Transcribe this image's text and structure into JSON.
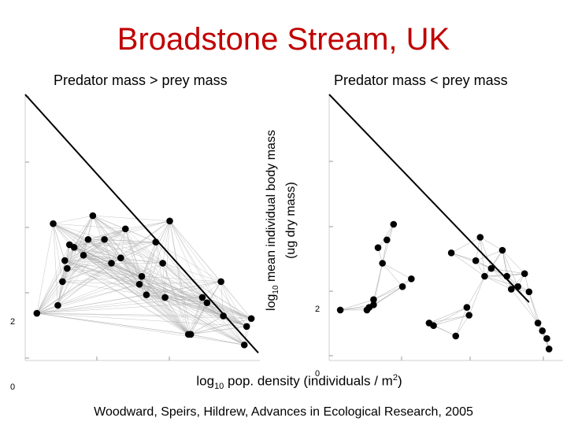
{
  "title": "Broadstone Stream, UK",
  "subtitles": {
    "left": "Predator mass > prey mass",
    "right": "Predator mass < prey mass"
  },
  "axis_labels": {
    "y_line1_pre": "log",
    "y_line1_sub": "10",
    "y_line1_post": " mean individual body mass",
    "y_line2": "(ug dry mass)",
    "x_pre": "log",
    "x_sub": "10",
    "x_post": " pop. density (individuals / m",
    "x_sup": "2",
    "x_end": ")"
  },
  "tick_labels": {
    "left_y_2": "2",
    "left_y_0": "0",
    "right_y_2": "2",
    "right_y_0": "0"
  },
  "credit": "Woodward, Speirs, Hildrew, Advances in Ecological Research, 2005",
  "colors": {
    "title": "#c00000",
    "points": "#000000",
    "links": "#aaaaaa",
    "line": "#000000"
  },
  "chart_data": [
    {
      "type": "scatter",
      "name": "left-panel",
      "x_units": "panel-relative",
      "points": [
        [
          0.05,
          0.17
        ],
        [
          0.14,
          0.2
        ],
        [
          0.12,
          0.51
        ],
        [
          0.16,
          0.29
        ],
        [
          0.17,
          0.37
        ],
        [
          0.18,
          0.34
        ],
        [
          0.19,
          0.43
        ],
        [
          0.21,
          0.42
        ],
        [
          0.25,
          0.39
        ],
        [
          0.27,
          0.45
        ],
        [
          0.29,
          0.54
        ],
        [
          0.34,
          0.45
        ],
        [
          0.41,
          0.38
        ],
        [
          0.43,
          0.49
        ],
        [
          0.49,
          0.28
        ],
        [
          0.5,
          0.31
        ],
        [
          0.52,
          0.24
        ],
        [
          0.56,
          0.44
        ],
        [
          0.59,
          0.36
        ],
        [
          0.6,
          0.23
        ],
        [
          0.62,
          0.52
        ],
        [
          0.7,
          0.09
        ],
        [
          0.71,
          0.09
        ],
        [
          0.76,
          0.23
        ],
        [
          0.78,
          0.21
        ],
        [
          0.84,
          0.29
        ],
        [
          0.85,
          0.16
        ],
        [
          0.94,
          0.05
        ],
        [
          0.95,
          0.12
        ],
        [
          0.97,
          0.15
        ],
        [
          0.37,
          0.36
        ]
      ],
      "line": [
        [
          0.0,
          1.0
        ],
        [
          1.0,
          0.02
        ]
      ]
    },
    {
      "type": "scatter",
      "name": "right-panel",
      "x_units": "panel-relative",
      "points": [
        [
          0.05,
          0.17
        ],
        [
          0.17,
          0.17
        ],
        [
          0.18,
          0.18
        ],
        [
          0.2,
          0.19
        ],
        [
          0.2,
          0.21
        ],
        [
          0.22,
          0.41
        ],
        [
          0.24,
          0.35
        ],
        [
          0.26,
          0.44
        ],
        [
          0.29,
          0.5
        ],
        [
          0.33,
          0.26
        ],
        [
          0.37,
          0.29
        ],
        [
          0.45,
          0.12
        ],
        [
          0.47,
          0.11
        ],
        [
          0.55,
          0.39
        ],
        [
          0.57,
          0.07
        ],
        [
          0.62,
          0.18
        ],
        [
          0.63,
          0.15
        ],
        [
          0.66,
          0.36
        ],
        [
          0.68,
          0.45
        ],
        [
          0.7,
          0.3
        ],
        [
          0.73,
          0.33
        ],
        [
          0.78,
          0.4
        ],
        [
          0.8,
          0.3
        ],
        [
          0.82,
          0.25
        ],
        [
          0.85,
          0.26
        ],
        [
          0.88,
          0.31
        ],
        [
          0.9,
          0.24
        ],
        [
          0.94,
          0.12
        ],
        [
          0.96,
          0.09
        ],
        [
          0.98,
          0.06
        ],
        [
          0.99,
          0.02
        ]
      ],
      "line": [
        [
          0.0,
          1.0
        ],
        [
          0.9,
          0.2
        ]
      ]
    }
  ]
}
